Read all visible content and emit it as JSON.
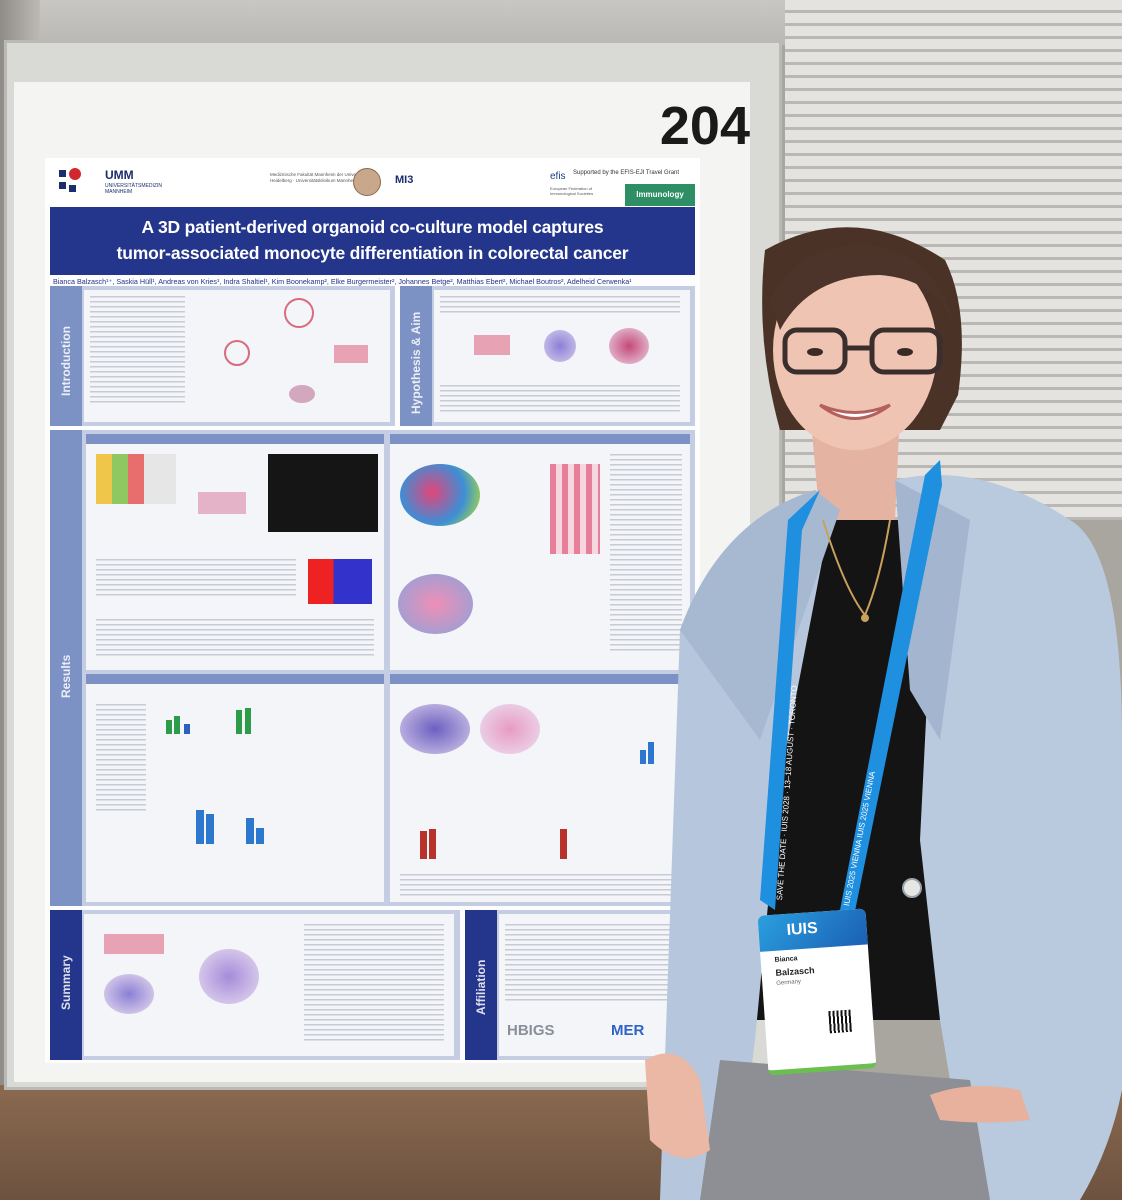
{
  "board": {
    "number": "204"
  },
  "poster": {
    "logos": {
      "umm": "UMM",
      "umm_sub": "UNIVERSITÄTSMEDIZIN MANNHEIM",
      "faculty": "Medizinische Fakultät Mannheim der Universität Heidelberg · Universitätsklinikum Mannheim",
      "mi3": "MI3",
      "efis": "efis",
      "efis_sub": "European Federation of Immunological Societies",
      "grant": "Supported by the EFIS-EJI Travel Grant",
      "journal": "Immunology"
    },
    "title_line1": "A 3D patient-derived organoid co-culture model captures",
    "title_line2": "tumor-associated monocyte differentiation in colorectal cancer",
    "authors": "Bianca Balzasch¹⁺, Saskia Hüll¹, Andreas von Kries¹, Indra Shaltiel¹, Kim Boonekamp², Elke Burgermeister², Johannes Betge², Matthias Ebert², Michael Boutros², Adelheid Cerwenka¹",
    "sections": {
      "introduction": "Introduction",
      "hypothesis": "Hypothesis & Aim",
      "results": "Results",
      "summary": "Summary",
      "affiliation": "Affiliation"
    },
    "footer_logos": {
      "hbigs": "HBIGS",
      "mer": "MER"
    }
  },
  "badge": {
    "logo": "IUIS",
    "first_name": "Bianca",
    "last_name": "Balzasch",
    "country": "Germany"
  },
  "lanyard": {
    "left_text": "SAVE THE DATE · IUIS 2028 · 13–18 AUGUST · TORONTO",
    "right_text": "IUIS 2025 VIENNA   IUIS 2025 VIENNA"
  },
  "colors": {
    "poster_blue": "#24358c",
    "section_blue": "#7c91c4",
    "lanyard_blue": "#1f8fe0",
    "blazer": "#b6c7dd"
  }
}
